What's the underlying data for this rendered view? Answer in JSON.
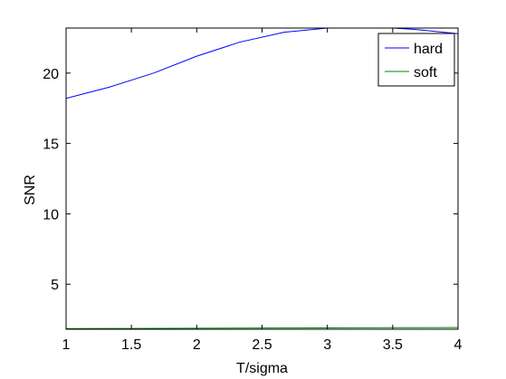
{
  "chart_data": {
    "type": "line",
    "title": "",
    "xlabel": "T/sigma",
    "ylabel": "SNR",
    "xlim": [
      1,
      4
    ],
    "ylim": [
      1.8,
      23.2
    ],
    "xticks": [
      1,
      1.5,
      2,
      2.5,
      3,
      3.5,
      4
    ],
    "xtick_labels": [
      "1",
      "1.5",
      "2",
      "2.5",
      "3",
      "3.5",
      "4"
    ],
    "yticks": [
      5,
      10,
      15,
      20
    ],
    "ytick_labels": [
      "5",
      "10",
      "15",
      "20"
    ],
    "grid": false,
    "legend_position": "top-right",
    "series": [
      {
        "name": "hard",
        "color": "#0000ff",
        "x": [
          1.0,
          1.33,
          1.67,
          2.0,
          2.33,
          2.67,
          3.0,
          3.33,
          3.67,
          4.0
        ],
        "y": [
          18.2,
          19.0,
          20.0,
          21.2,
          22.2,
          22.9,
          23.2,
          23.3,
          23.1,
          22.8
        ]
      },
      {
        "name": "soft",
        "color": "#008000",
        "x": [
          1.0,
          1.5,
          2.0,
          2.5,
          3.0,
          3.5,
          4.0
        ],
        "y": [
          1.85,
          1.86,
          1.87,
          1.89,
          1.9,
          1.91,
          1.92
        ]
      }
    ]
  }
}
